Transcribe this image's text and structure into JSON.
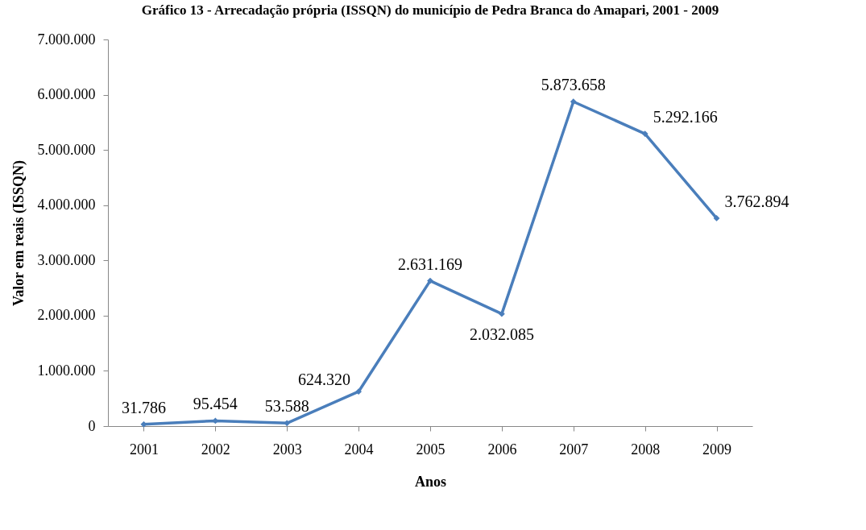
{
  "chart_data": {
    "type": "line",
    "title": "Gráfico 13 - Arrecadação própria (ISSQN) do município de Pedra Branca do Amapari, 2001 - 2009",
    "xlabel": "Anos",
    "ylabel": "Valor em reais (ISSQN)",
    "categories": [
      "2001",
      "2002",
      "2003",
      "2004",
      "2005",
      "2006",
      "2007",
      "2008",
      "2009"
    ],
    "series": [
      {
        "color": "#4a7ebb",
        "values": [
          31786,
          95454,
          53588,
          624320,
          2631169,
          2032085,
          5873658,
          5292166,
          3762894
        ],
        "value_labels": [
          "31.786",
          "95.454",
          "53.588",
          "624.320",
          "2.631.169",
          "2.032.085",
          "5.873.658",
          "5.292.166",
          "3.762.894"
        ]
      }
    ],
    "ylim": [
      0,
      7000000
    ],
    "yticks": [
      {
        "value": 0,
        "label": "0"
      },
      {
        "value": 1000000,
        "label": "1.000.000"
      },
      {
        "value": 2000000,
        "label": "2.000.000"
      },
      {
        "value": 3000000,
        "label": "3.000.000"
      },
      {
        "value": 4000000,
        "label": "4.000.000"
      },
      {
        "value": 5000000,
        "label": "5.000.000"
      },
      {
        "value": 6000000,
        "label": "6.000.000"
      },
      {
        "value": 7000000,
        "label": "7.000.000"
      }
    ],
    "grid": false,
    "marker": "diamond",
    "line_style": "solid"
  }
}
